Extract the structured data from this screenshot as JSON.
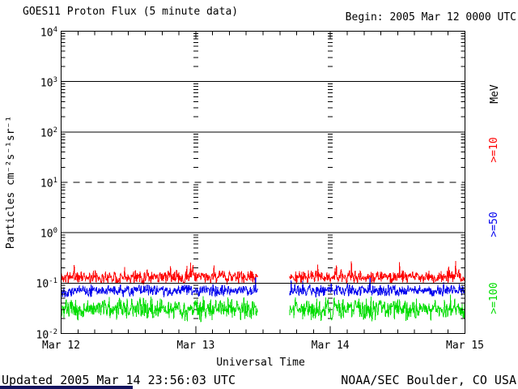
{
  "header": {
    "title": "GOES11 Proton Flux (5 minute data)",
    "begin_label": "Begin: 2005 Mar 12 0000 UTC"
  },
  "footer": {
    "updated": "Updated 2005 Mar 14 23:56:03 UTC",
    "credit": "NOAA/SEC Boulder, CO USA"
  },
  "misc": {
    "bottom_bar_color": "#14145e",
    "background_color": "#ffffff",
    "axis_color": "#000000"
  },
  "chart_data": {
    "type": "line",
    "title": "GOES11 Proton Flux (5 minute data)",
    "xlabel": "Universal Time",
    "ylabel": "Particles cm⁻²s⁻¹sr⁻¹",
    "x_range": {
      "start": "2005 Mar 12 0000 UTC",
      "end": "2005 Mar 15 0000 UTC",
      "total_hours": 72
    },
    "x_tick_labels": [
      "Mar 12",
      "Mar 13",
      "Mar 14",
      "Mar 15"
    ],
    "x_tick_hours": [
      0,
      24,
      48,
      72
    ],
    "x_minor_tick_hours": 3,
    "y_axis": {
      "scale": "log",
      "unit": "Particles cm⁻²s⁻¹sr⁻¹",
      "min_exponent": -2,
      "max_exponent": 4,
      "tick_exponents": [
        4,
        3,
        2,
        1,
        0,
        -1,
        -2
      ]
    },
    "gridlines": {
      "solid_exponents": [
        3,
        2,
        0,
        -1
      ],
      "dashed_exponents": [
        1
      ],
      "day_boundary_minor_tick_columns_hours": [
        24,
        48
      ]
    },
    "legend": {
      "title": "MeV",
      "entries": [
        {
          "label": ">=10",
          "color": "#ff0000"
        },
        {
          "label": ">=50",
          "color": "#0000ee"
        },
        {
          "label": ">=100",
          "color": "#00dd00"
        }
      ]
    },
    "sample_minutes": 5,
    "data_gap_hours": [
      35.0,
      40.75
    ],
    "series": [
      {
        "name": "protons >=10 MeV",
        "color": "#ff0000",
        "typical_flux": 0.13,
        "flux_range": [
          0.08,
          0.45
        ],
        "log_mean": -0.88,
        "log_spread": 0.15,
        "log_min": -1.1,
        "log_max": -0.38,
        "spike_prob": 0.04,
        "spike_amp": 0.3,
        "seed": 11
      },
      {
        "name": "protons >=50 MeV",
        "color": "#0000ee",
        "typical_flux": 0.075,
        "flux_range": [
          0.04,
          0.19
        ],
        "log_mean": -1.15,
        "log_spread": 0.14,
        "log_min": -1.42,
        "log_max": -0.72,
        "spike_prob": 0.02,
        "spike_amp": 0.18,
        "seed": 22
      },
      {
        "name": "protons >=100 MeV",
        "color": "#00dd00",
        "typical_flux": 0.032,
        "flux_range": [
          0.011,
          0.1
        ],
        "log_mean": -1.52,
        "log_spread": 0.26,
        "log_min": -1.96,
        "log_max": -0.98,
        "spike_prob": 0.02,
        "spike_amp": 0.18,
        "seed": 33
      }
    ]
  }
}
